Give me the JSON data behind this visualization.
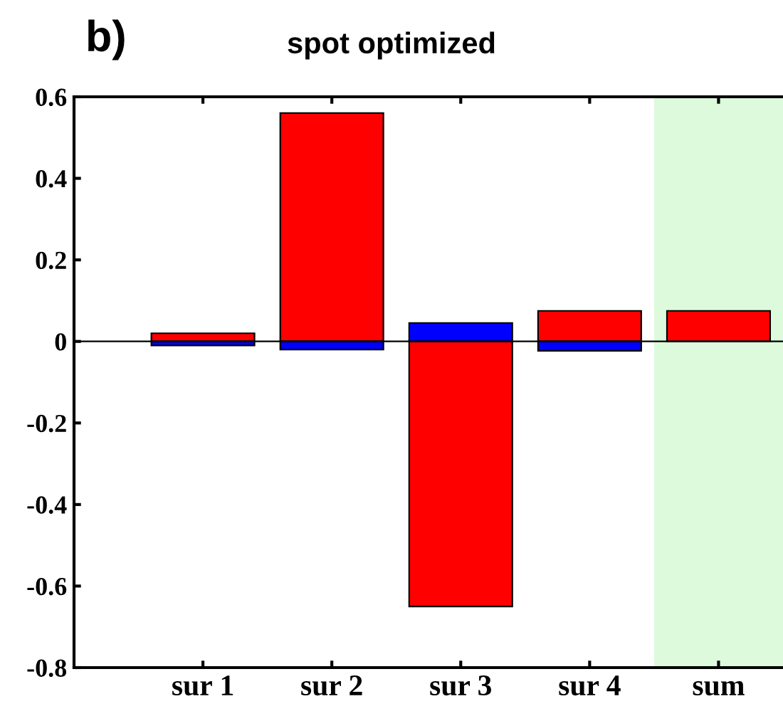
{
  "chart_data": {
    "type": "bar",
    "title": "spot optimized",
    "annotations": [
      "b)"
    ],
    "categories": [
      "sur 1",
      "sur 2",
      "sur 3",
      "sur 4",
      "sum"
    ],
    "series": [
      {
        "color": "#ff0000",
        "values": [
          0.02,
          0.56,
          -0.65,
          0.075,
          0.075
        ]
      },
      {
        "color": "#0000ff",
        "values": [
          -0.01,
          -0.02,
          0.045,
          -0.023,
          null
        ]
      }
    ],
    "ylim": [
      -0.8,
      0.6
    ],
    "yticks": [
      -0.8,
      -0.6,
      -0.4,
      -0.2,
      0,
      0.2,
      0.4,
      0.6
    ],
    "ref_lines": [
      {
        "axis": "y",
        "value": 0,
        "color": "#000000"
      }
    ],
    "stacked": true,
    "bands": [
      {
        "axis": "x",
        "from": "sum",
        "to": "sum",
        "color": "#ddfadd"
      }
    ],
    "grid": false,
    "legend": false
  }
}
